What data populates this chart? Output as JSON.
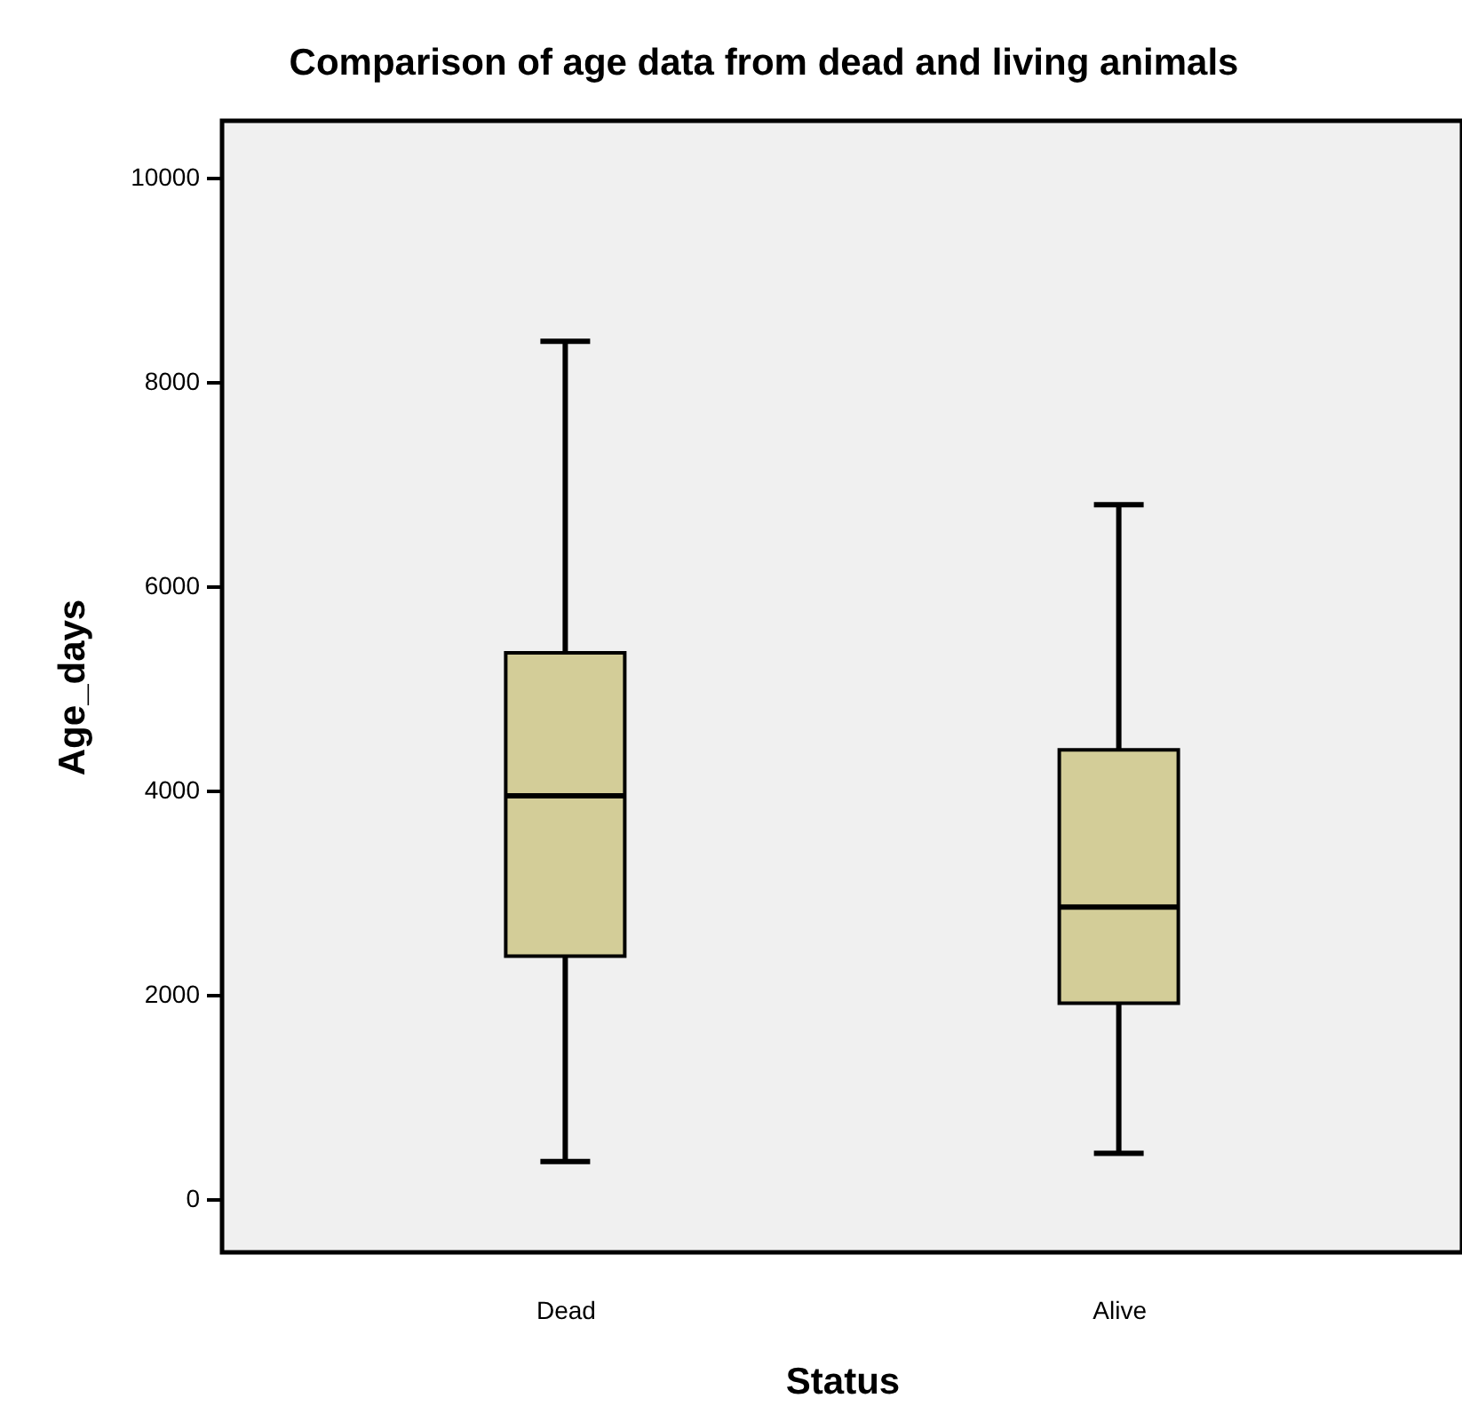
{
  "chart_data": {
    "type": "box",
    "title": "Comparison of age data from dead and living animals",
    "xlabel": "Status",
    "ylabel": "Age_days",
    "categories": [
      "Dead",
      "Alive"
    ],
    "series": [
      {
        "color": "#d3cd98",
        "boxes": [
          {
            "low": 370,
            "q1": 2380,
            "median": 3950,
            "q3": 5350,
            "high": 8400
          },
          {
            "low": 450,
            "q1": 1920,
            "median": 2860,
            "q3": 4400,
            "high": 6800
          }
        ]
      }
    ],
    "ylim": [
      -520,
      10560
    ],
    "yticks": [
      0,
      2000,
      4000,
      6000,
      8000,
      10000
    ]
  }
}
